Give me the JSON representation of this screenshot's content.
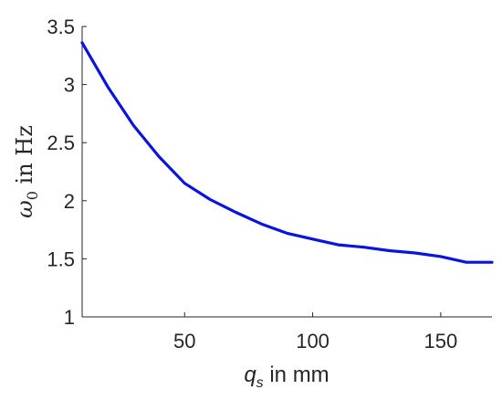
{
  "chart_data": {
    "type": "line",
    "xlabel": {
      "var": "q",
      "sub": "s",
      "rest": " in mm"
    },
    "ylabel": {
      "var": "ω",
      "sub": "0",
      "rest": " in Hz"
    },
    "xlim": [
      10,
      170
    ],
    "ylim": [
      1,
      3.5
    ],
    "xticks": [
      50,
      100,
      150
    ],
    "yticks": [
      1,
      1.5,
      2,
      2.5,
      3,
      3.5
    ],
    "grid": false,
    "series": [
      {
        "color": "#0a14e0",
        "x": [
          10,
          20,
          30,
          40,
          50,
          60,
          70,
          80,
          90,
          100,
          110,
          120,
          130,
          140,
          150,
          160,
          170
        ],
        "y": [
          3.36,
          2.98,
          2.65,
          2.38,
          2.15,
          2.01,
          1.9,
          1.8,
          1.72,
          1.67,
          1.62,
          1.6,
          1.57,
          1.55,
          1.52,
          1.47,
          1.47
        ]
      }
    ]
  }
}
